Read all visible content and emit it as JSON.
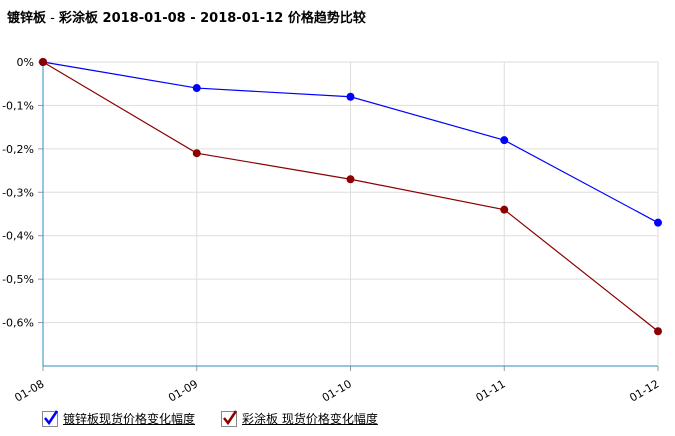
{
  "title": {
    "product_a": "镀锌板",
    "separator": " - ",
    "product_b": "彩涂板",
    "date_range": " 2018-01-08 - 2018-01-12 ",
    "suffix": "价格趋势比较"
  },
  "legend": [
    {
      "label": "镀锌板现货价格变化幅度",
      "checked": true,
      "color": "#0000ff"
    },
    {
      "label": "彩涂板 现货价格变化幅度",
      "checked": true,
      "color": "#8b0000"
    }
  ],
  "chart_data": {
    "type": "line",
    "categories": [
      "01-08",
      "01-09",
      "01-10",
      "01-11",
      "01-12"
    ],
    "yticks": [
      "0%",
      "-0,1%",
      "-0,2%",
      "-0,3%",
      "-0,4%",
      "-0,5%",
      "-0,6%"
    ],
    "ylim": [
      -0.7,
      0
    ],
    "grid": true,
    "legend_position": "bottom-left",
    "series": [
      {
        "name": "镀锌板现货价格变化幅度",
        "color": "#0000ff",
        "values": [
          0,
          -0.06,
          -0.08,
          -0.18,
          -0.37
        ]
      },
      {
        "name": "彩涂板 现货价格变化幅度",
        "color": "#8b0000",
        "values": [
          0,
          -0.21,
          -0.27,
          -0.34,
          -0.62
        ]
      }
    ]
  }
}
